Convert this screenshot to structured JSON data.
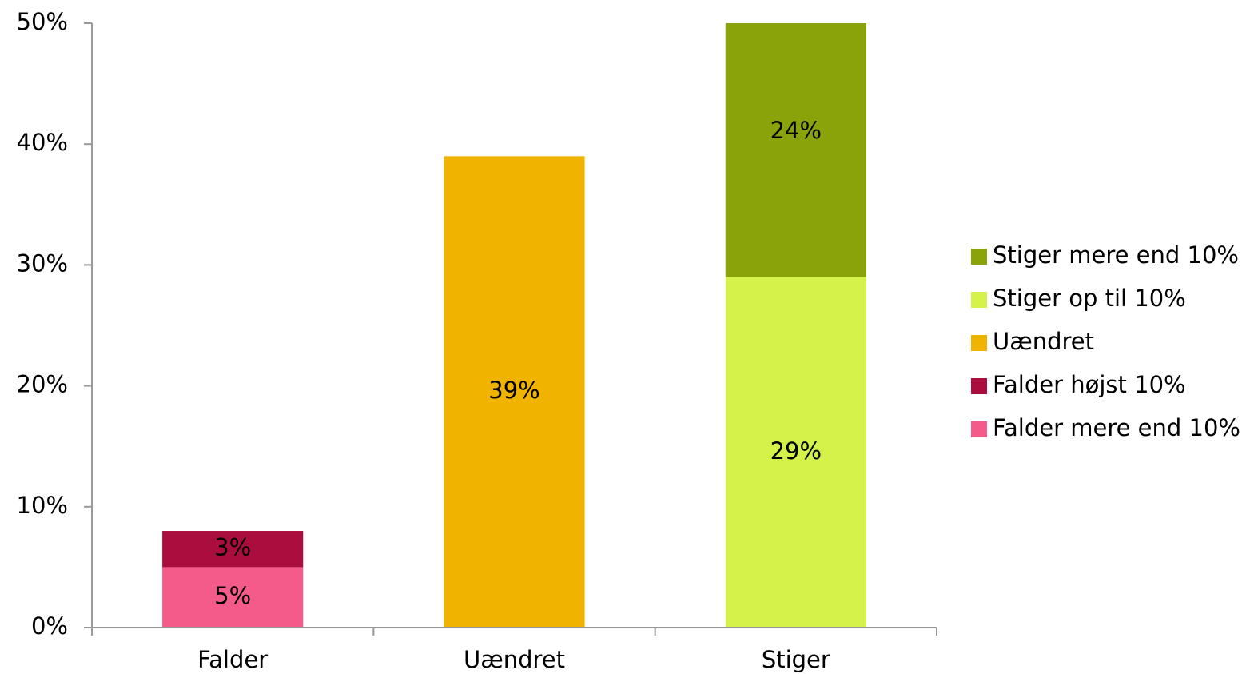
{
  "chart_data": {
    "type": "stacked_bar",
    "categories": [
      "Falder",
      "Uændret",
      "Stiger"
    ],
    "series": [
      {
        "name": "Falder mere end 10%",
        "color": "#f45b8b",
        "values": [
          5,
          null,
          null
        ],
        "value_labels": [
          "5%",
          null,
          null
        ]
      },
      {
        "name": "Falder højst 10%",
        "color": "#ab0d3f",
        "values": [
          3,
          null,
          null
        ],
        "value_labels": [
          "3%",
          null,
          null
        ]
      },
      {
        "name": "Uændret",
        "color": "#f0b400",
        "values": [
          null,
          39,
          null
        ],
        "value_labels": [
          null,
          "39%",
          null
        ]
      },
      {
        "name": "Stiger op til 10%",
        "color": "#d4f24a",
        "values": [
          null,
          null,
          29
        ],
        "value_labels": [
          null,
          null,
          "29%"
        ]
      },
      {
        "name": "Stiger mere end 10%",
        "color": "#8aa30a",
        "values": [
          null,
          null,
          24
        ],
        "value_labels": [
          null,
          null,
          "24%"
        ]
      }
    ],
    "ylim": [
      0,
      50
    ],
    "yticks": [
      {
        "value": 0,
        "label": "0%"
      },
      {
        "value": 10,
        "label": "10%"
      },
      {
        "value": 20,
        "label": "20%"
      },
      {
        "value": 30,
        "label": "30%"
      },
      {
        "value": 40,
        "label": "40%"
      },
      {
        "value": 50,
        "label": "50%"
      }
    ],
    "legend": "right"
  }
}
